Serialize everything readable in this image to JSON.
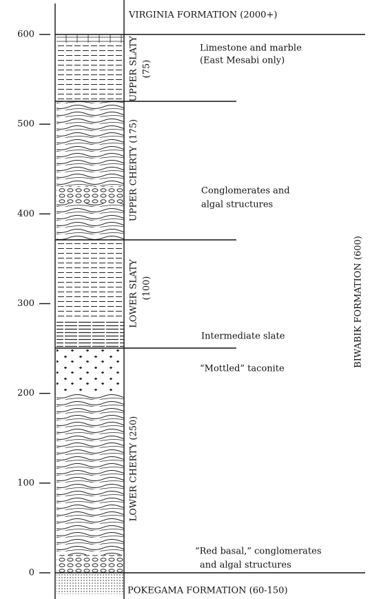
{
  "axis": {
    "ticks": [
      0,
      100,
      200,
      300,
      400,
      500,
      600
    ]
  },
  "formations": {
    "top": "VIRGINIA FORMATION (2000+)",
    "bottom": "POKEGAMA FORMATION (60-150)",
    "side": "BIWABIK FORMATION (600)"
  },
  "units": [
    {
      "name": "UPPER SLATY",
      "thickness": "(75)"
    },
    {
      "name": "UPPER CHERTY (175)"
    },
    {
      "name": "LOWER SLATY",
      "thickness": "(100)"
    },
    {
      "name": "LOWER CHERTY (250)"
    }
  ],
  "notes": [
    "Limestone and marble",
    "(East Mesabi only)",
    "Conglomerates and",
    "algal structures",
    "Intermediate slate",
    "“Mottled” taconite",
    "“Red basal,” conglomerates",
    "and algal structures"
  ]
}
